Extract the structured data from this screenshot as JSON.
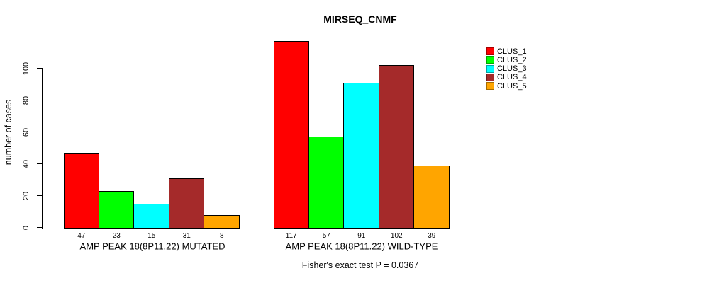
{
  "chart_data": {
    "type": "bar",
    "title": "MIRSEQ_CNMF",
    "ylabel": "number of cases",
    "yticks": [
      0,
      20,
      40,
      60,
      80,
      100
    ],
    "ylim": [
      0,
      117
    ],
    "grid": false,
    "legend_position": "right",
    "legend": [
      "CLUS_1",
      "CLUS_2",
      "CLUS_3",
      "CLUS_4",
      "CLUS_5"
    ],
    "series_colors": [
      "#ff0000",
      "#00ff00",
      "#00ffff",
      "#a52a2a",
      "#ffa500"
    ],
    "groups": [
      {
        "label": "AMP PEAK 18(8P11.22) MUTATED",
        "values": [
          47,
          23,
          15,
          31,
          8
        ]
      },
      {
        "label": "AMP PEAK 18(8P11.22) WILD-TYPE",
        "values": [
          117,
          57,
          91,
          102,
          39
        ]
      }
    ],
    "footnote": "Fisher's exact test P = 0.0367"
  }
}
